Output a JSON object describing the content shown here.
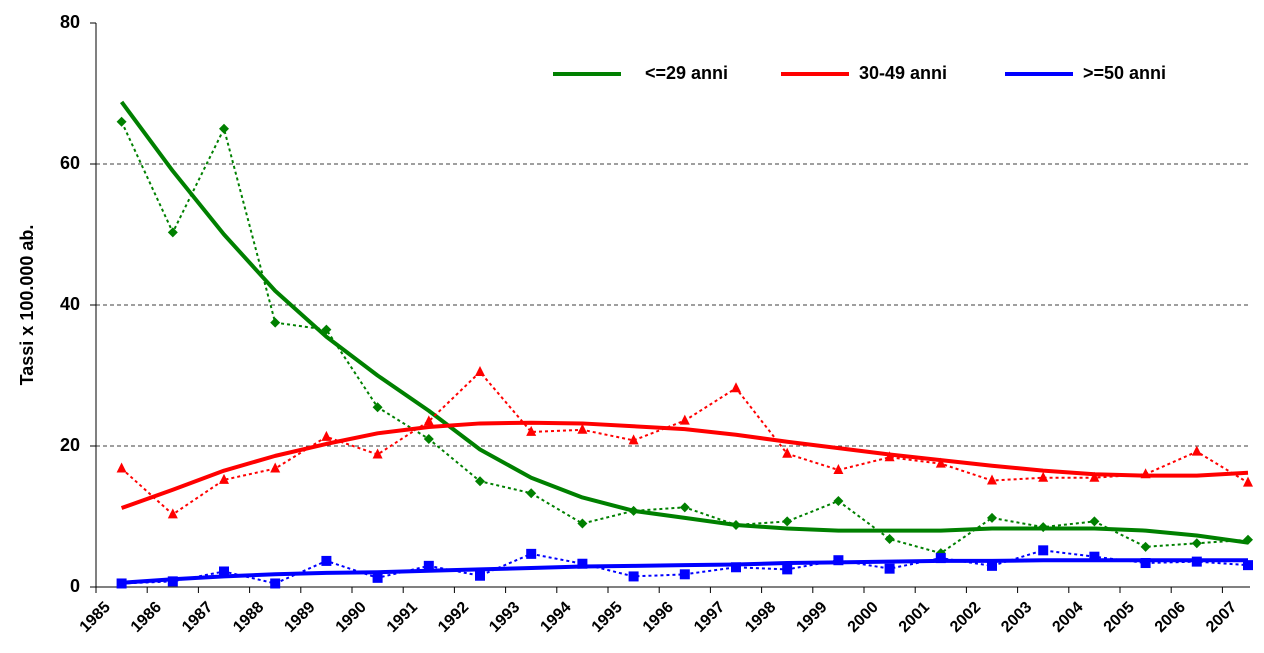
{
  "chart_data": {
    "type": "line",
    "y_label": "Tassi x 100.000 ab.",
    "categories": [
      "1985",
      "1986",
      "1987",
      "1988",
      "1989",
      "1990",
      "1991",
      "1992",
      "1993",
      "1994",
      "1995",
      "1996",
      "1997",
      "1998",
      "1999",
      "2000",
      "2001",
      "2002",
      "2003",
      "2004",
      "2005",
      "2006",
      "2007"
    ],
    "ylim": [
      0,
      80
    ],
    "yticks": [
      0,
      20,
      40,
      60,
      80
    ],
    "grid": true,
    "legend": "top-right",
    "series": [
      {
        "name": "<=29 anni",
        "color": "#008000",
        "marker": "diamond",
        "values": [
          68.8,
          59,
          50,
          42,
          35.5,
          30,
          25,
          19.5,
          15.5,
          12.7,
          10.8,
          9.8,
          8.8,
          8.3,
          8,
          8,
          8,
          8.3,
          8.3,
          8.3,
          8,
          7.3,
          6.3
        ],
        "points": [
          66,
          50.3,
          65,
          37.5,
          36.5,
          25.5,
          21,
          15,
          13.3,
          9,
          10.8,
          11.3,
          8.8,
          9.3,
          12.2,
          6.8,
          4.8,
          9.8,
          8.5,
          9.3,
          5.7,
          6.2,
          6.7
        ]
      },
      {
        "name": "30-49 anni",
        "color": "#ff0000",
        "marker": "triangle",
        "values": [
          11.2,
          13.8,
          16.5,
          18.6,
          20.3,
          21.8,
          22.7,
          23.2,
          23.3,
          23.2,
          22.8,
          22.4,
          21.6,
          20.6,
          19.7,
          18.8,
          18,
          17.2,
          16.5,
          16,
          15.8,
          15.8,
          16.2
        ],
        "points": [
          16.8,
          10.3,
          15.2,
          16.8,
          21.3,
          18.8,
          23.5,
          30.5,
          22,
          22.3,
          20.8,
          23.6,
          28.2,
          18.9,
          16.6,
          18.4,
          17.5,
          15.1,
          15.5,
          15.5,
          16,
          19.2,
          14.8
        ]
      },
      {
        "name": ">=50 anni",
        "color": "#0000ff",
        "marker": "square",
        "values": [
          0.6,
          1.1,
          1.5,
          1.8,
          2,
          2.1,
          2.3,
          2.5,
          2.7,
          2.9,
          3,
          3.1,
          3.2,
          3.4,
          3.5,
          3.6,
          3.7,
          3.7,
          3.8,
          3.8,
          3.8,
          3.8,
          3.8
        ],
        "points": [
          0.5,
          0.8,
          2.2,
          0.5,
          3.7,
          1.3,
          3,
          1.6,
          4.7,
          3.3,
          1.5,
          1.8,
          2.8,
          2.5,
          3.8,
          2.6,
          4.1,
          3,
          5.2,
          4.3,
          3.4,
          3.6,
          3.1
        ]
      }
    ]
  }
}
